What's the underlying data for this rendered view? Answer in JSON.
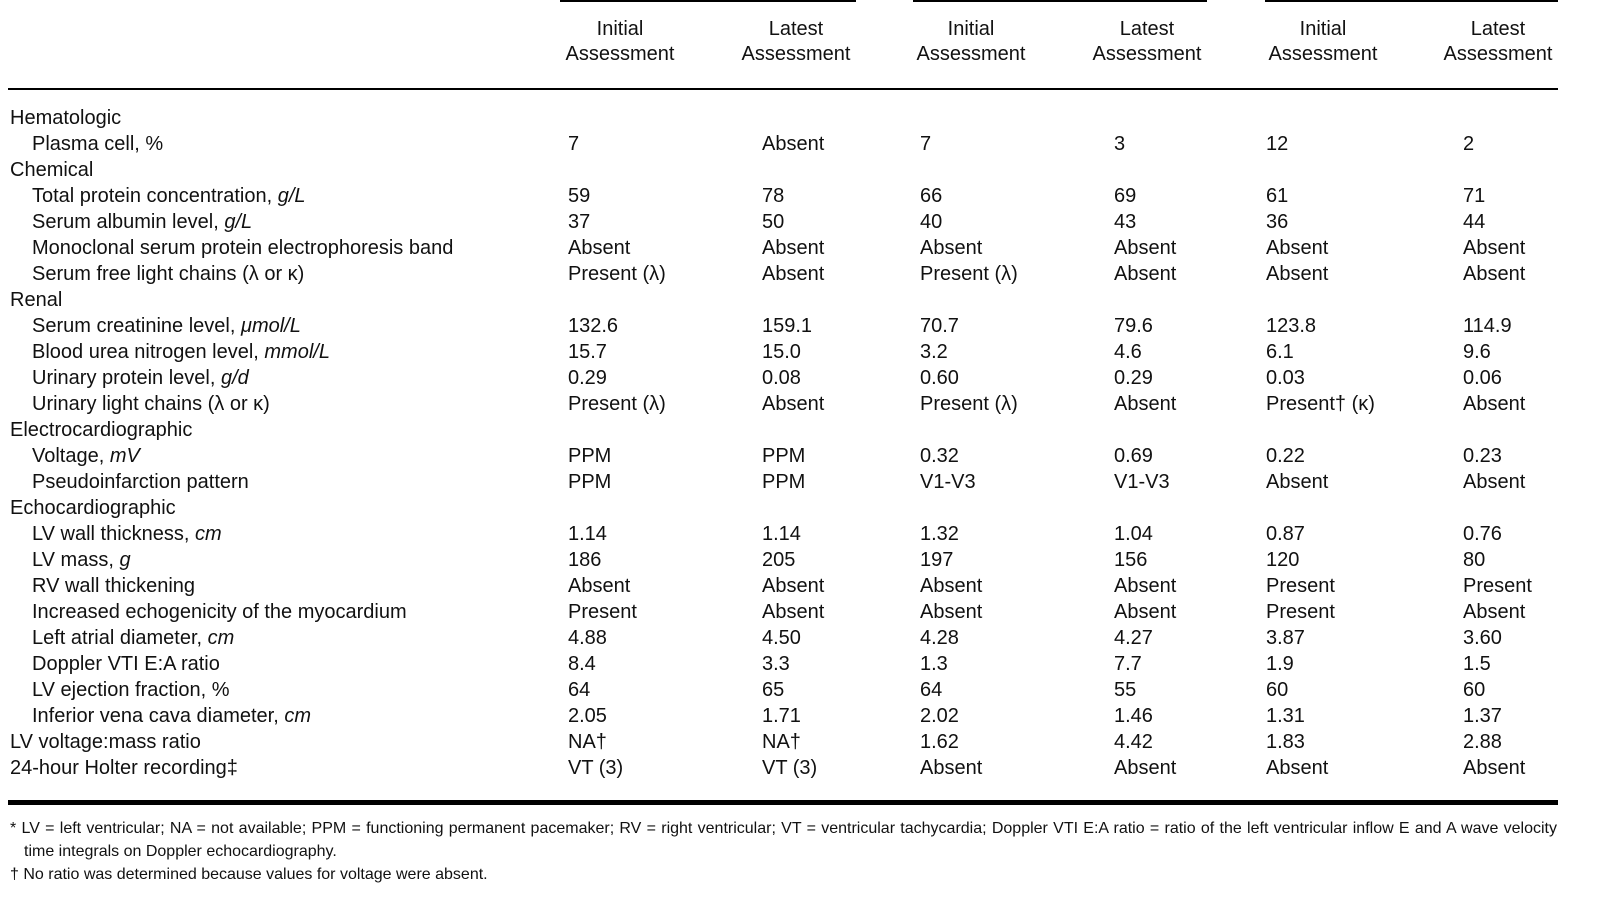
{
  "table": {
    "columns": [
      [
        "Initial",
        "Assessment"
      ],
      [
        "Latest",
        "Assessment"
      ],
      [
        "Initial",
        "Assessment"
      ],
      [
        "Latest",
        "Assessment"
      ],
      [
        "Initial",
        "Assessment"
      ],
      [
        "Latest",
        "Assessment"
      ]
    ],
    "rows": [
      {
        "section": "Hematologic"
      },
      {
        "item": "Plasma cell, %",
        "cells": [
          "7",
          "Absent",
          "7",
          "3",
          "12",
          "2"
        ]
      },
      {
        "section": "Chemical"
      },
      {
        "item": "Total protein concentration,",
        "unit": "g/L",
        "cells": [
          "59",
          "78",
          "66",
          "69",
          "61",
          "71"
        ]
      },
      {
        "item": "Serum albumin level,",
        "unit": "g/L",
        "cells": [
          "37",
          "50",
          "40",
          "43",
          "36",
          "44"
        ]
      },
      {
        "item": "Monoclonal serum protein electrophoresis band",
        "cells": [
          "Absent",
          "Absent",
          "Absent",
          "Absent",
          "Absent",
          "Absent"
        ]
      },
      {
        "item": "Serum free light chains (λ or κ)",
        "cells": [
          "Present (λ)",
          "Absent",
          "Present (λ)",
          "Absent",
          "Absent",
          "Absent"
        ]
      },
      {
        "section": "Renal"
      },
      {
        "item": "Serum creatinine level,",
        "unit": "μmol/L",
        "cells": [
          "132.6",
          "159.1",
          "70.7",
          "79.6",
          "123.8",
          "114.9"
        ]
      },
      {
        "item": "Blood urea nitrogen level,",
        "unit": "mmol/L",
        "cells": [
          "15.7",
          "15.0",
          "3.2",
          "4.6",
          "6.1",
          "9.6"
        ]
      },
      {
        "item": "Urinary protein level,",
        "unit": "g/d",
        "cells": [
          "0.29",
          "0.08",
          "0.60",
          "0.29",
          "0.03",
          "0.06"
        ]
      },
      {
        "item": "Urinary light chains (λ or κ)",
        "cells": [
          "Present (λ)",
          "Absent",
          "Present (λ)",
          "Absent",
          "Present† (κ)",
          "Absent"
        ]
      },
      {
        "section": "Electrocardiographic"
      },
      {
        "item": "Voltage,",
        "unit": "mV",
        "cells": [
          "PPM",
          "PPM",
          "0.32",
          "0.69",
          "0.22",
          "0.23"
        ]
      },
      {
        "item": "Pseudoinfarction pattern",
        "cells": [
          "PPM",
          "PPM",
          "V1-V3",
          "V1-V3",
          "Absent",
          "Absent"
        ]
      },
      {
        "section": "Echocardiographic"
      },
      {
        "item": "LV wall thickness,",
        "unit": "cm",
        "cells": [
          "1.14",
          "1.14",
          "1.32",
          "1.04",
          "0.87",
          "0.76"
        ]
      },
      {
        "item": "LV mass,",
        "unit": "g",
        "cells": [
          "186",
          "205",
          "197",
          "156",
          "120",
          "80"
        ]
      },
      {
        "item": "RV wall thickening",
        "cells": [
          "Absent",
          "Absent",
          "Absent",
          "Absent",
          "Present",
          "Present"
        ]
      },
      {
        "item": "Increased echogenicity of the myocardium",
        "cells": [
          "Present",
          "Absent",
          "Absent",
          "Absent",
          "Present",
          "Absent"
        ]
      },
      {
        "item": "Left atrial diameter,",
        "unit": "cm",
        "cells": [
          "4.88",
          "4.50",
          "4.28",
          "4.27",
          "3.87",
          "3.60"
        ]
      },
      {
        "item": "Doppler VTI E:A ratio",
        "cells": [
          "8.4",
          "3.3",
          "1.3",
          "7.7",
          "1.9",
          "1.5"
        ]
      },
      {
        "item": "LV ejection fraction, %",
        "cells": [
          "64",
          "65",
          "64",
          "55",
          "60",
          "60"
        ]
      },
      {
        "item": "Inferior vena cava diameter,",
        "unit": "cm",
        "cells": [
          "2.05",
          "1.71",
          "2.02",
          "1.46",
          "1.31",
          "1.37"
        ]
      },
      {
        "label": "LV voltage:mass ratio",
        "cells": [
          "NA†",
          "NA†",
          "1.62",
          "4.42",
          "1.83",
          "2.88"
        ]
      },
      {
        "label": "24-hour Holter recording‡",
        "cells": [
          "VT (3)",
          "VT (3)",
          "Absent",
          "Absent",
          "Absent",
          "Absent"
        ]
      }
    ]
  },
  "footnotes": [
    "* LV = left ventricular; NA = not available; PPM = functioning permanent pacemaker; RV = right ventricular; VT = ventricular tachycardia; Doppler VTI E:A ratio = ratio of the left ventricular inflow E and A wave velocity time integrals on Doppler echocardiography.",
    "† No ratio was determined because values for voltage were absent."
  ]
}
